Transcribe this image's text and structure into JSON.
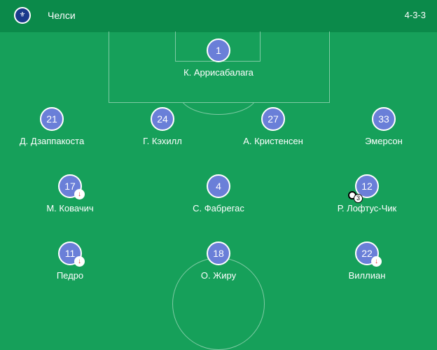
{
  "header": {
    "team": "Челси",
    "formation": "4-3-3",
    "crest_icon": "chelsea-crest"
  },
  "colors": {
    "header": "#0b8a4a",
    "pitch": "#16a05a",
    "player": "#6a7fd8",
    "sub_arrow": "#dd3333"
  },
  "players": [
    {
      "number": "1",
      "name": "К. Аррисабалага"
    },
    {
      "number": "21",
      "name": "Д. Дзаппакоста"
    },
    {
      "number": "24",
      "name": "Г. Кэхилл"
    },
    {
      "number": "27",
      "name": "А. Кристенсен"
    },
    {
      "number": "33",
      "name": "Эмерсон"
    },
    {
      "number": "17",
      "name": "М. Ковачич",
      "substituted": true
    },
    {
      "number": "4",
      "name": "С. Фабрегас"
    },
    {
      "number": "12",
      "name": "Р. Лофтус-Чик",
      "goals": "3"
    },
    {
      "number": "11",
      "name": "Педро",
      "substituted": true
    },
    {
      "number": "18",
      "name": "О. Жиру"
    },
    {
      "number": "22",
      "name": "Виллиан",
      "substituted": true
    }
  ]
}
